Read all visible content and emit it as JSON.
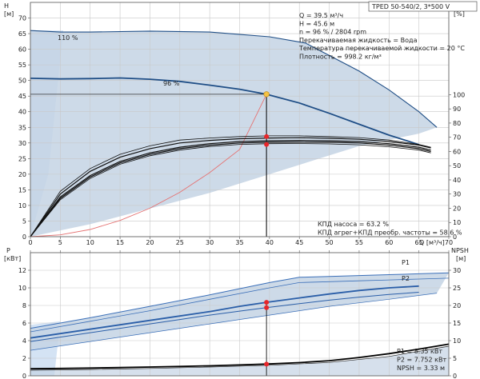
{
  "chart_data": {
    "type": "line",
    "title_box": "TPED 50-540/2, 3*500 V",
    "colors": {
      "envelope": "#c4d3e4",
      "envelope_edge": "#cfe0f3",
      "head_curve": "#1f4e86",
      "system_curve": "#e57373",
      "efficiency_curve": "#111111",
      "power_curve": "#2a5ea8",
      "npsh_curve": "#000000",
      "op_point": "#e8262a",
      "duty_point": "#f5c242"
    },
    "upper": {
      "ylabel_left_top": "H",
      "ylabel_left_unit": "[м]",
      "ylabel_right_top": "eta",
      "ylabel_right_unit": "[%]",
      "xlabel": "Q [м³/ч]",
      "xlim": [
        0,
        70
      ],
      "ylim_left": [
        0,
        75
      ],
      "ylim_right": [
        0,
        165
      ],
      "x_ticks": [
        0,
        5,
        10,
        15,
        20,
        25,
        30,
        35,
        40,
        45,
        50,
        55,
        60,
        65,
        70
      ],
      "x_tick_labels": [
        "0",
        "5",
        "10",
        "15",
        "20",
        "25",
        "30",
        "35",
        "40",
        "45",
        "50",
        "55",
        "60",
        "65",
        "70"
      ],
      "y_ticks_left": [
        0,
        5,
        10,
        15,
        20,
        25,
        30,
        35,
        40,
        45,
        50,
        55,
        60,
        65,
        70
      ],
      "y_ticks_right": [
        0,
        10,
        20,
        30,
        40,
        50,
        60,
        70,
        80,
        90,
        100
      ],
      "info_lines": [
        "Q = 39.5 м³/ч",
        "H = 45.6 м",
        "n = 96 % / 2804 rpm",
        "Перекачиваемая жидкость = Вода",
        "Температура перекачиваемой жидкости = 20 °C",
        "Плотность = 998.2 кг/м³"
      ],
      "eff_lines": [
        "КПД насоса = 63.2 %",
        "КПД агрег+КПД преобр. частоты = 58.6 %"
      ],
      "curve_labels": [
        "110 %",
        "96 %"
      ],
      "head_110": {
        "x": [
          0,
          5,
          10,
          20,
          30,
          40,
          46,
          50,
          55,
          60,
          65,
          68
        ],
        "y": [
          66,
          65.5,
          65.5,
          65.8,
          65.5,
          64,
          62,
          58,
          53,
          47,
          40,
          35
        ]
      },
      "head_96": {
        "x": [
          0,
          5,
          10,
          15,
          20,
          25,
          30,
          35,
          39.5,
          45,
          50,
          55,
          60,
          65
        ],
        "y": [
          50.7,
          50.5,
          50.6,
          50.8,
          50.4,
          49.7,
          48.5,
          47.2,
          45.6,
          42.8,
          39.5,
          36.0,
          32.5,
          29.5
        ]
      },
      "envelope_left": {
        "x": [
          0,
          0,
          1.5,
          3,
          6
        ],
        "y": [
          0,
          64,
          66,
          66.5,
          66
        ]
      },
      "envelope_bottom": {
        "x": [
          0,
          10,
          20,
          30,
          40,
          50,
          55,
          60,
          65,
          68
        ],
        "y": [
          0,
          4,
          9,
          14,
          20,
          26,
          29,
          31,
          33,
          35
        ]
      },
      "system_curve": {
        "x": [
          0,
          5,
          10,
          15,
          20,
          25,
          30,
          35,
          39.5
        ],
        "y": [
          0,
          0.6,
          2.3,
          5.2,
          9.1,
          14.2,
          20.5,
          27.9,
          45.6
        ]
      },
      "efficiency_curves": [
        {
          "x": [
            0,
            5,
            10,
            15,
            20,
            25,
            30,
            35,
            40,
            45,
            50,
            55,
            60,
            65,
            67
          ],
          "y": [
            0,
            32,
            48,
            58,
            64,
            68,
            69.5,
            70.5,
            71,
            71,
            70.5,
            69.8,
            68,
            65,
            63
          ]
        },
        {
          "x": [
            0,
            5,
            10,
            15,
            20,
            25,
            30,
            35,
            40,
            45,
            50,
            55,
            60,
            65,
            67
          ],
          "y": [
            0,
            30,
            46,
            56,
            62,
            66,
            67.8,
            69,
            69.5,
            69.7,
            69.3,
            68.6,
            67,
            64.5,
            62.5
          ]
        },
        {
          "x": [
            0,
            5,
            10,
            15,
            20,
            25,
            30,
            35,
            40,
            45,
            50,
            55,
            60,
            65,
            67
          ],
          "y": [
            0,
            28,
            43,
            53,
            59,
            63,
            65.5,
            67,
            67.5,
            67.8,
            67.5,
            67,
            65.5,
            63,
            61
          ]
        },
        {
          "x": [
            0,
            5,
            10,
            15,
            20,
            25,
            30,
            35,
            40,
            45,
            50,
            55,
            60,
            65,
            67
          ],
          "y": [
            0,
            27,
            42,
            52,
            58,
            62,
            64.5,
            66,
            66.5,
            66.7,
            66.5,
            66,
            64.5,
            62,
            60
          ]
        },
        {
          "x": [
            0,
            5,
            10,
            15,
            20,
            25,
            30,
            35,
            40,
            45,
            50,
            55,
            60,
            65,
            67
          ],
          "y": [
            0,
            26,
            41,
            51,
            57,
            61,
            63.5,
            65,
            65.5,
            65.6,
            65.3,
            64.7,
            63.3,
            61,
            59
          ]
        }
      ],
      "duty_point": {
        "x": 39.5,
        "y": 45.6
      },
      "eff_points_eta": [
        70.5,
        65.0
      ]
    },
    "lower": {
      "ylabel_left_top": "P",
      "ylabel_left_unit": "[кВт]",
      "ylabel_right_top": "NPSH",
      "ylabel_right_unit": "[м]",
      "xlim": [
        0,
        70
      ],
      "ylim_left": [
        0,
        14
      ],
      "ylim_right": [
        0,
        35
      ],
      "y_ticks_left": [
        0,
        2,
        4,
        6,
        8,
        10,
        12
      ],
      "y_ticks_right": [
        0,
        5,
        10,
        15,
        20,
        25,
        30
      ],
      "series_labels": [
        "P1",
        "P2"
      ],
      "readout_lines": [
        "P1 = 8.35 кВт",
        "P2 = 7.752 кВт",
        "NPSH = 3.33 м"
      ],
      "p1_upper": {
        "x": [
          0,
          10,
          20,
          30,
          40,
          45,
          50,
          55,
          60,
          65,
          70
        ],
        "y": [
          5.4,
          6.6,
          7.9,
          9.2,
          10.6,
          11.2,
          11.3,
          11.4,
          11.5,
          11.6,
          11.7
        ]
      },
      "p2_upper": {
        "x": [
          0,
          10,
          20,
          30,
          40,
          45,
          50,
          55,
          60,
          65,
          70
        ],
        "y": [
          5.0,
          6.2,
          7.4,
          8.7,
          10.0,
          10.6,
          10.7,
          10.8,
          10.9,
          11.0,
          11.1
        ]
      },
      "p1_96": {
        "x": [
          0,
          5,
          10,
          15,
          20,
          25,
          30,
          35,
          39.5,
          45,
          50,
          55,
          60,
          65
        ],
        "y": [
          4.3,
          4.8,
          5.3,
          5.8,
          6.3,
          6.8,
          7.3,
          7.9,
          8.35,
          8.85,
          9.3,
          9.7,
          10.0,
          10.2
        ]
      },
      "p2_96": {
        "x": [
          0,
          5,
          10,
          15,
          20,
          25,
          30,
          35,
          39.5,
          45,
          50,
          55,
          60,
          65
        ],
        "y": [
          3.9,
          4.4,
          4.9,
          5.4,
          5.9,
          6.4,
          6.9,
          7.35,
          7.752,
          8.2,
          8.6,
          8.95,
          9.25,
          9.5
        ]
      },
      "envelope_bottom": {
        "x": [
          0,
          10,
          20,
          30,
          40,
          50,
          60,
          68
        ],
        "y": [
          2.9,
          3.9,
          4.9,
          5.9,
          6.9,
          7.9,
          8.7,
          9.4
        ]
      },
      "npsh": {
        "x": [
          0,
          5,
          10,
          15,
          20,
          25,
          30,
          35,
          39.5,
          45,
          50,
          55,
          60,
          65,
          70
        ],
        "y": [
          2.0,
          2.1,
          2.2,
          2.35,
          2.5,
          2.65,
          2.85,
          3.1,
          3.33,
          3.75,
          4.3,
          5.2,
          6.3,
          7.6,
          9.0
        ]
      },
      "npsh_band": {
        "x": [
          0,
          10,
          20,
          30,
          40,
          50,
          60,
          70
        ],
        "y": [
          1.6,
          1.8,
          2.1,
          2.5,
          3.0,
          3.8,
          5.5,
          8.4
        ]
      },
      "op_points_p": [
        8.35,
        7.752
      ],
      "op_point_npsh": 3.33
    }
  }
}
